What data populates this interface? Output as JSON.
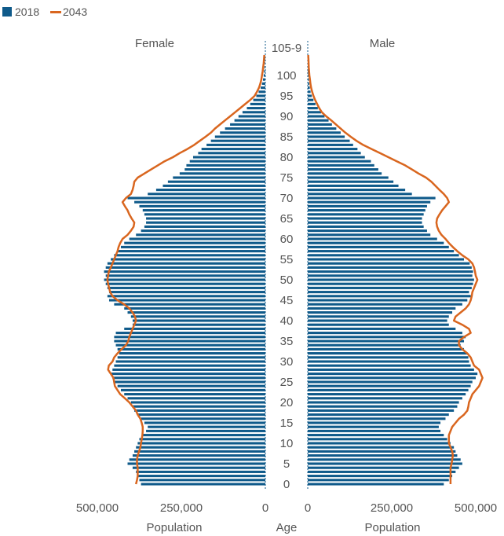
{
  "chart_data": {
    "type": "bar",
    "subtype": "population-pyramid",
    "legend": [
      {
        "label": "2018",
        "color": "#0F5A8A",
        "shape": "square"
      },
      {
        "label": "2043",
        "color": "#D9661F",
        "shape": "line"
      }
    ],
    "panel_titles": {
      "female": "Female",
      "male": "Male"
    },
    "age_tick_labels": [
      "105-9",
      "100",
      "95",
      "90",
      "85",
      "80",
      "75",
      "70",
      "65",
      "60",
      "55",
      "50",
      "45",
      "40",
      "35",
      "30",
      "25",
      "20",
      "15",
      "10",
      "5",
      "0"
    ],
    "age_tick_values": [
      105,
      100,
      95,
      90,
      85,
      80,
      75,
      70,
      65,
      60,
      55,
      50,
      45,
      40,
      35,
      30,
      25,
      20,
      15,
      10,
      5,
      0
    ],
    "xlim": [
      0,
      500000
    ],
    "x_tick_values": [
      500000,
      250000,
      0
    ],
    "x_tick_labels_female": [
      "500,000",
      "250,000",
      "0"
    ],
    "x_tick_labels_male": [
      "0",
      "250,000",
      "500,000"
    ],
    "xlabel_female": "Population",
    "xlabel_center": "Age",
    "xlabel_male": "Population",
    "ages": [
      0,
      1,
      2,
      3,
      4,
      5,
      6,
      7,
      8,
      9,
      10,
      11,
      12,
      13,
      14,
      15,
      16,
      17,
      18,
      19,
      20,
      21,
      22,
      23,
      24,
      25,
      26,
      27,
      28,
      29,
      30,
      31,
      32,
      33,
      34,
      35,
      36,
      37,
      38,
      39,
      40,
      41,
      42,
      43,
      44,
      45,
      46,
      47,
      48,
      49,
      50,
      51,
      52,
      53,
      54,
      55,
      56,
      57,
      58,
      59,
      60,
      61,
      62,
      63,
      64,
      65,
      66,
      67,
      68,
      69,
      70,
      71,
      72,
      73,
      74,
      75,
      76,
      77,
      78,
      79,
      80,
      81,
      82,
      83,
      84,
      85,
      86,
      87,
      88,
      89,
      90,
      91,
      92,
      93,
      94,
      95,
      96,
      97,
      98,
      99,
      100,
      101,
      102,
      103,
      104,
      105
    ],
    "series": [
      {
        "name": "2018",
        "side": "female",
        "values": [
          370000,
          375000,
          380000,
          385000,
          395000,
          410000,
          405000,
          395000,
          390000,
          385000,
          380000,
          375000,
          365000,
          355000,
          350000,
          360000,
          370000,
          380000,
          390000,
          395000,
          400000,
          410000,
          420000,
          430000,
          440000,
          450000,
          455000,
          460000,
          455000,
          450000,
          445000,
          440000,
          435000,
          440000,
          445000,
          450000,
          450000,
          445000,
          420000,
          395000,
          395000,
          400000,
          410000,
          420000,
          450000,
          465000,
          470000,
          465000,
          470000,
          475000,
          480000,
          475000,
          480000,
          475000,
          470000,
          460000,
          450000,
          440000,
          430000,
          420000,
          405000,
          385000,
          370000,
          360000,
          355000,
          355000,
          360000,
          365000,
          375000,
          390000,
          410000,
          350000,
          325000,
          305000,
          290000,
          275000,
          255000,
          240000,
          235000,
          225000,
          215000,
          200000,
          190000,
          175000,
          162000,
          150000,
          135000,
          120000,
          105000,
          92000,
          80000,
          68000,
          55000,
          45000,
          36000,
          27000,
          20000,
          14000,
          10000,
          7000,
          5000,
          3500,
          2500,
          1500,
          1000,
          500
        ]
      },
      {
        "name": "2018",
        "side": "male",
        "values": [
          405000,
          420000,
          430000,
          440000,
          450000,
          460000,
          455000,
          445000,
          440000,
          435000,
          425000,
          415000,
          405000,
          395000,
          390000,
          395000,
          410000,
          420000,
          435000,
          445000,
          450000,
          460000,
          470000,
          478000,
          485000,
          490000,
          500000,
          505000,
          495000,
          485000,
          480000,
          478000,
          475000,
          465000,
          455000,
          465000,
          470000,
          460000,
          440000,
          420000,
          415000,
          420000,
          430000,
          440000,
          460000,
          475000,
          485000,
          480000,
          488000,
          492000,
          495000,
          490000,
          492000,
          488000,
          482000,
          465000,
          450000,
          435000,
          420000,
          405000,
          385000,
          365000,
          355000,
          345000,
          340000,
          340000,
          345000,
          350000,
          355000,
          365000,
          380000,
          310000,
          290000,
          270000,
          255000,
          240000,
          220000,
          210000,
          198000,
          188000,
          170000,
          158000,
          148000,
          135000,
          125000,
          110000,
          98000,
          85000,
          72000,
          62000,
          50000,
          40000,
          30000,
          23000,
          17000,
          12000,
          8500,
          6000,
          4000,
          2800,
          2000,
          1400,
          900,
          600,
          300,
          100
        ]
      },
      {
        "name": "2043",
        "side": "female",
        "values": [
          385000,
          382000,
          380000,
          380000,
          380000,
          382000,
          382000,
          380000,
          376000,
          372000,
          370000,
          368000,
          366000,
          365000,
          365000,
          368000,
          372000,
          380000,
          385000,
          395000,
          405000,
          418000,
          432000,
          440000,
          448000,
          450000,
          452000,
          460000,
          468000,
          466000,
          455000,
          450000,
          440000,
          428000,
          415000,
          408000,
          405000,
          400000,
          395000,
          390000,
          385000,
          388000,
          395000,
          405000,
          420000,
          440000,
          455000,
          462000,
          465000,
          468000,
          470000,
          468000,
          466000,
          460000,
          455000,
          450000,
          445000,
          440000,
          437000,
          432000,
          425000,
          410000,
          400000,
          392000,
          390000,
          398000,
          405000,
          410000,
          418000,
          425000,
          415000,
          400000,
          395000,
          392000,
          390000,
          380000,
          360000,
          340000,
          320000,
          300000,
          275000,
          255000,
          232000,
          212000,
          195000,
          178000,
          162000,
          150000,
          135000,
          120000,
          105000,
          90000,
          75000,
          60000,
          45000,
          32000,
          25000,
          19000,
          15000,
          12000,
          10000,
          8000,
          6500,
          5000,
          4000,
          3000
        ]
      },
      {
        "name": "2043",
        "side": "male",
        "values": [
          425000,
          425000,
          425000,
          425000,
          425000,
          428000,
          430000,
          432000,
          430000,
          425000,
          420000,
          420000,
          420000,
          425000,
          430000,
          440000,
          450000,
          465000,
          475000,
          478000,
          480000,
          485000,
          490000,
          500000,
          510000,
          515000,
          520000,
          515000,
          510000,
          495000,
          490000,
          485000,
          475000,
          460000,
          450000,
          450000,
          465000,
          485000,
          480000,
          460000,
          435000,
          440000,
          455000,
          470000,
          480000,
          485000,
          488000,
          490000,
          495000,
          500000,
          505000,
          500000,
          498000,
          495000,
          490000,
          478000,
          460000,
          445000,
          432000,
          420000,
          410000,
          398000,
          390000,
          385000,
          383000,
          385000,
          392000,
          400000,
          410000,
          420000,
          415000,
          405000,
          392000,
          380000,
          368000,
          352000,
          330000,
          310000,
          290000,
          265000,
          240000,
          215000,
          190000,
          165000,
          145000,
          128000,
          112000,
          98000,
          84000,
          70000,
          55000,
          42000,
          34000,
          28000,
          22000,
          17000,
          13000,
          10000,
          8000,
          6500,
          5000,
          4000,
          3000,
          2500,
          2000,
          1500
        ]
      }
    ]
  }
}
